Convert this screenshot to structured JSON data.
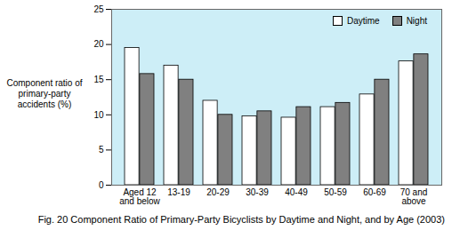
{
  "chart_data": {
    "type": "bar",
    "title": "Fig. 20 Component Ratio of Primary-Party Bicyclists by Daytime and Night, and by Age (2003)",
    "ylabel": "Component ratio of primary-party accidents (%)",
    "categories": [
      "Aged 12 and below",
      "13-19",
      "20-29",
      "30-39",
      "40-49",
      "50-59",
      "60-69",
      "70 and above"
    ],
    "series": [
      {
        "name": "Daytime",
        "color": "#ffffff",
        "values": [
          19.5,
          17.0,
          12.0,
          9.8,
          9.6,
          11.1,
          12.9,
          17.6
        ]
      },
      {
        "name": "Night",
        "color": "#808080",
        "values": [
          15.8,
          15.0,
          10.0,
          10.5,
          11.1,
          11.7,
          15.0,
          18.6
        ]
      }
    ],
    "ylim": [
      0,
      25
    ],
    "yticks": [
      0,
      5,
      10,
      15,
      20,
      25
    ],
    "grid": false,
    "legend": "upper right"
  }
}
